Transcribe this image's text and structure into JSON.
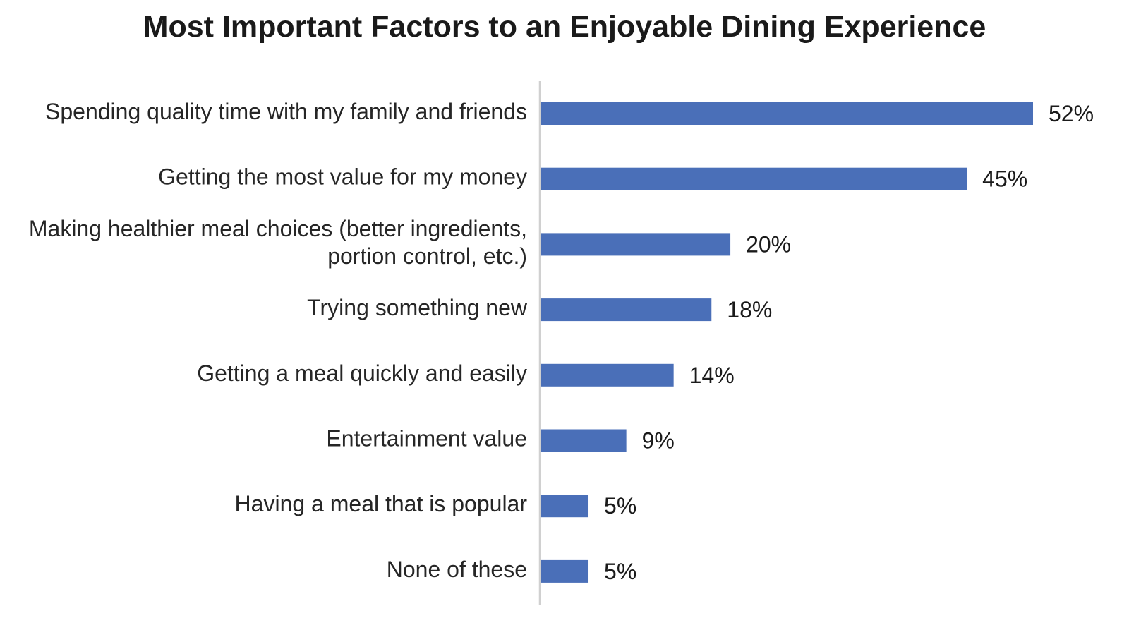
{
  "chart_data": {
    "type": "bar",
    "orientation": "horizontal",
    "title": "Most Important Factors to an Enjoyable Dining Experience",
    "categories": [
      "Spending quality time with my family and friends",
      "Getting the most value for my money",
      "Making healthier meal choices (better ingredients, portion control, etc.)",
      "Trying something new",
      "Getting a meal quickly and easily",
      "Entertainment value",
      "Having a meal that is popular",
      "None of these"
    ],
    "category_lines": [
      [
        "Spending quality time with my family and friends"
      ],
      [
        "Getting the most value for my money"
      ],
      [
        "Making healthier meal choices (better ingredients,",
        "portion control, etc.)"
      ],
      [
        "Trying something new"
      ],
      [
        "Getting a meal quickly and easily"
      ],
      [
        "Entertainment value"
      ],
      [
        "Having a meal that is popular"
      ],
      [
        "None of these"
      ]
    ],
    "values": [
      52,
      45,
      20,
      18,
      14,
      9,
      5,
      5
    ],
    "value_labels": [
      "52%",
      "45%",
      "20%",
      "18%",
      "14%",
      "9%",
      "5%",
      "5%"
    ],
    "unit": "%",
    "xlim": [
      0,
      52
    ],
    "bar_color": "#4a6fb8",
    "axis_color": "#d0d0d0",
    "grid": false,
    "legend": "none"
  }
}
